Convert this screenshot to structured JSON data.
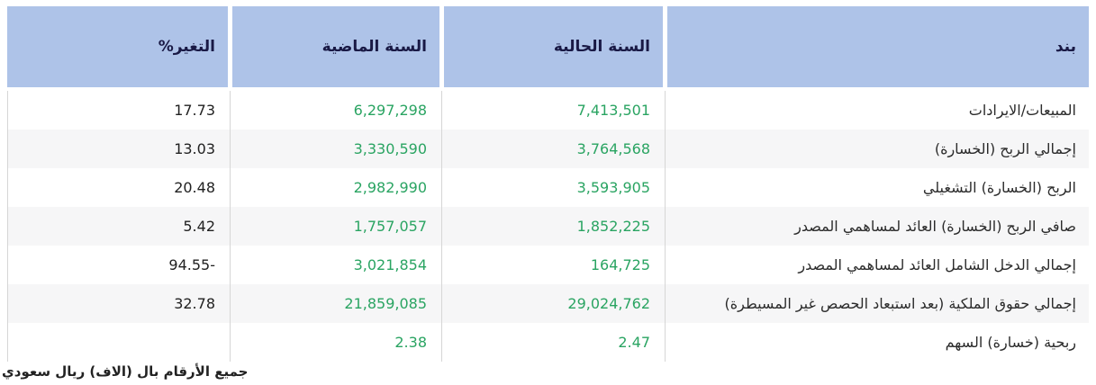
{
  "table": {
    "headers": {
      "item": "بند",
      "current_year": "السنة الحالية",
      "previous_year": "السنة الماضية",
      "change": "التغير%"
    },
    "rows": [
      {
        "item": "المبيعات/الايرادات",
        "current": "7,413,501",
        "previous": "6,297,298",
        "change": "17.73"
      },
      {
        "item": "إجمالي الربح (الخسارة)",
        "current": "3,764,568",
        "previous": "3,330,590",
        "change": "13.03"
      },
      {
        "item": "الربح (الخسارة) التشغيلي",
        "current": "3,593,905",
        "previous": "2,982,990",
        "change": "20.48"
      },
      {
        "item": "صافي الربح (الخسارة) العائد لمساهمي المصدر",
        "current": "1,852,225",
        "previous": "1,757,057",
        "change": "5.42"
      },
      {
        "item": "إجمالي الدخل الشامل العائد لمساهمي المصدر",
        "current": "164,725",
        "previous": "3,021,854",
        "change": "-94.55"
      },
      {
        "item": "إجمالي حقوق الملكية (بعد استبعاد الحصص غير المسيطرة)",
        "current": "29,024,762",
        "previous": "21,859,085",
        "change": "32.78"
      },
      {
        "item": "ربحية (خسارة) السهم",
        "current": "2.47",
        "previous": "2.38",
        "change": ""
      }
    ],
    "footnote": "جميع الأرقام بال (الاف) ريال سعودي"
  },
  "colors": {
    "header_bg": "#aec3e8",
    "header_text": "#191945",
    "positive_value": "#2aa462",
    "change_text": "#212121",
    "alt_row_bg": "#f6f6f7",
    "separator": "#d6d6d6"
  }
}
